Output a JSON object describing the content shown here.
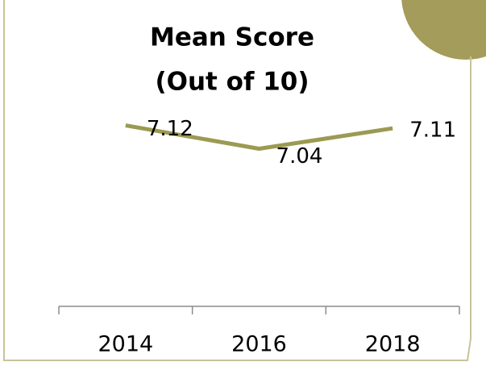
{
  "chart_data": {
    "type": "line",
    "title": [
      "Mean Score",
      "(Out of 10)"
    ],
    "categories": [
      "2014",
      "2016",
      "2018"
    ],
    "values": [
      7.12,
      7.04,
      7.11
    ],
    "color": "#9c9a52",
    "ylim": [
      6.5,
      7.5
    ]
  }
}
